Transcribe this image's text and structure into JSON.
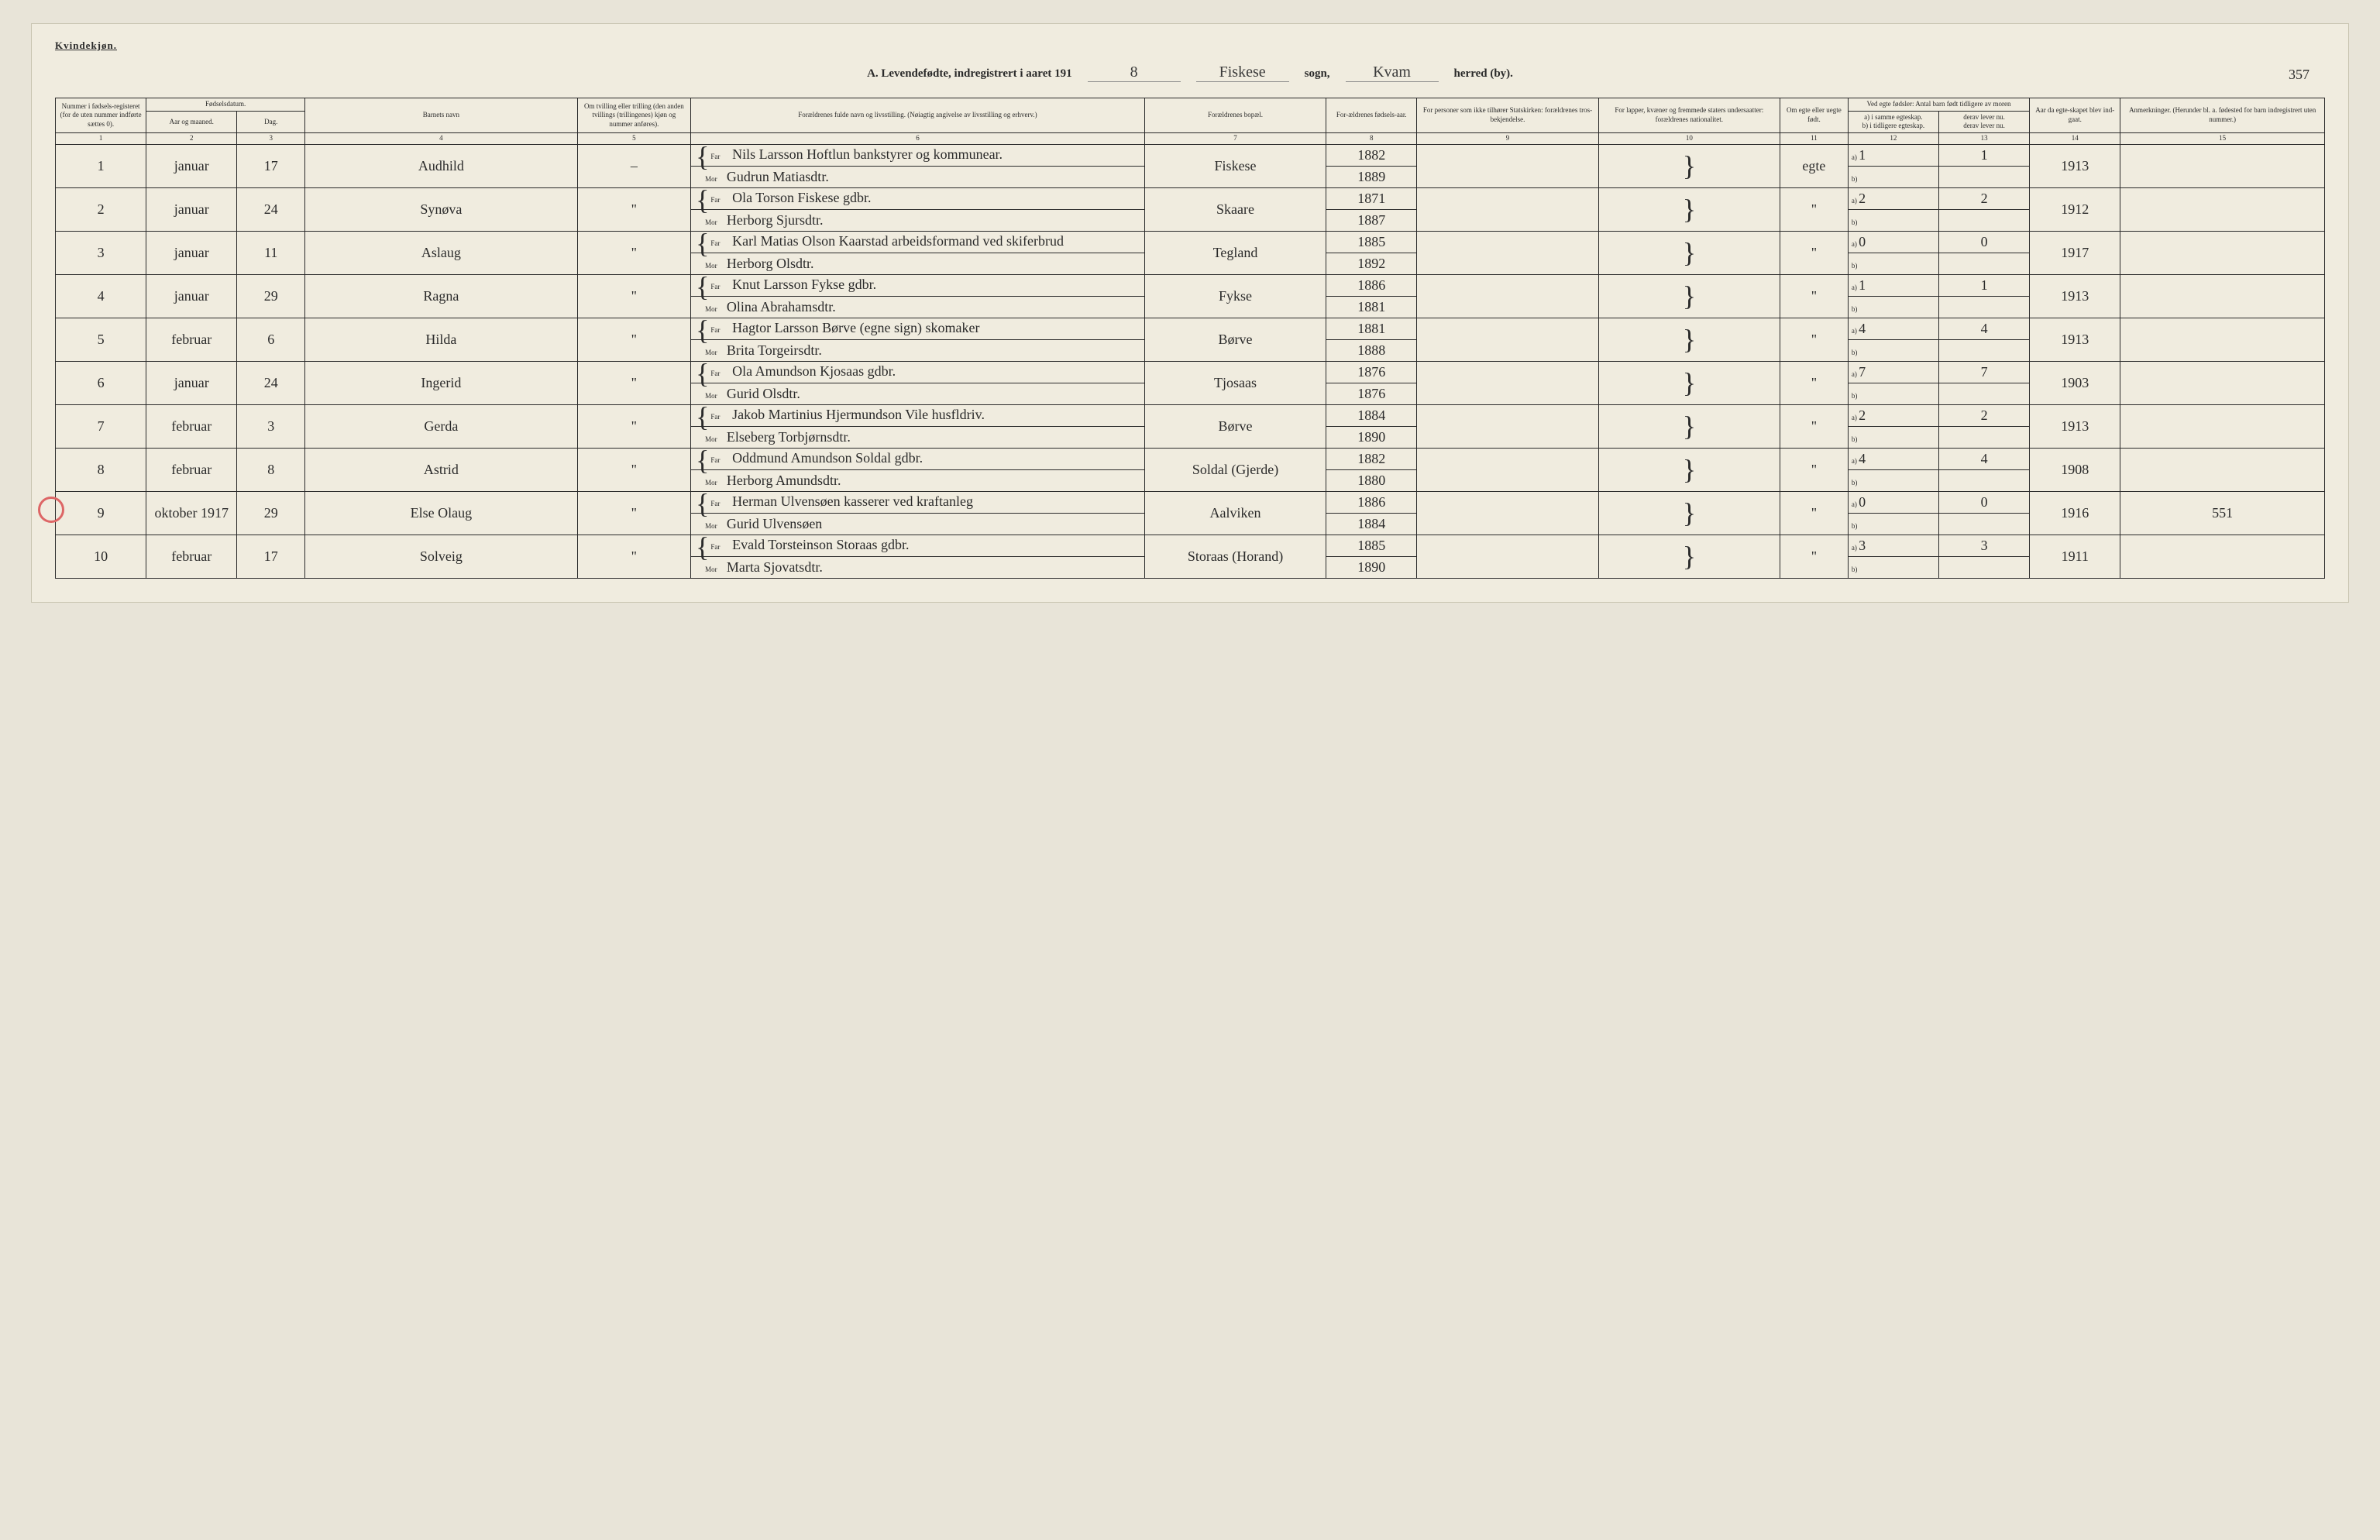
{
  "gender_label": "Kvindekjøn.",
  "title_prefix": "A. Levendefødte, indregistrert i aaret 191",
  "year_digit": "8",
  "sogn_label": "sogn,",
  "sogn_value": "Fiskese",
  "herred_label": "herred (by).",
  "herred_value": "Kvam",
  "page_number": "357",
  "headers": {
    "c1": "Nummer i fødsels-registeret (for de uten nummer indførte sættes 0).",
    "c2_3": "Fødselsdatum.",
    "c2": "Aar og maaned.",
    "c3": "Dag.",
    "c4": "Barnets navn",
    "c5": "Om tvilling eller trilling (den anden tvillings (trillingenes) kjøn og nummer anføres).",
    "c6": "Forældrenes fulde navn og livsstilling. (Nøiagtig angivelse av livsstilling og erhverv.)",
    "c7": "Forældrenes bopæl.",
    "c8": "For-ældrenes fødsels-aar.",
    "c9": "For personer som ikke tilhører Statskirken: forældrenes tros-bekjendelse.",
    "c10": "For lapper, kvæner og fremmede staters undersaatter: forældrenes nationalitet.",
    "c11": "Om egte eller uegte født.",
    "c12_13": "Ved egte fødsler: Antal barn født tidligere av moren",
    "c12a": "a) i samme egteskap.",
    "c12b": "b) i tidligere egteskap.",
    "c13a": "derav lever nu.",
    "c13b": "derav lever nu.",
    "c14": "Aar da egte-skapet blev ind-gaat.",
    "c15": "Anmerkninger. (Herunder bl. a. fødested for barn indregistrert uten nummer.)"
  },
  "col_nums": [
    "1",
    "2",
    "3",
    "4",
    "5",
    "6",
    "7",
    "8",
    "9",
    "10",
    "11",
    "12",
    "13",
    "14",
    "15"
  ],
  "far_label": "Far",
  "mor_label": "Mor",
  "rows": [
    {
      "num": "1",
      "month": "januar",
      "day": "17",
      "name": "Audhild",
      "twin": "–",
      "far": "Nils Larsson Hoftlun bankstyrer og kommunear.",
      "mor": "Gudrun Matiasdtr.",
      "bopael": "Fiskese",
      "far_aar": "1882",
      "mor_aar": "1889",
      "c9": "",
      "c10": "",
      "egte": "egte",
      "a": "1",
      "a_lever": "1",
      "b": "",
      "aar_egt": "1913",
      "anm": ""
    },
    {
      "num": "2",
      "month": "januar",
      "day": "24",
      "name": "Synøva",
      "twin": "\"",
      "far": "Ola Torson Fiskese gdbr.",
      "mor": "Herborg Sjursdtr.",
      "bopael": "Skaare",
      "far_aar": "1871",
      "mor_aar": "1887",
      "c9": "",
      "c10": "",
      "egte": "\"",
      "a": "2",
      "a_lever": "2",
      "b": "",
      "aar_egt": "1912",
      "anm": ""
    },
    {
      "num": "3",
      "month": "januar",
      "day": "11",
      "name": "Aslaug",
      "twin": "\"",
      "far": "Karl Matias Olson Kaarstad arbeidsformand ved skiferbrud",
      "mor": "Herborg Olsdtr.",
      "bopael": "Tegland",
      "far_aar": "1885",
      "mor_aar": "1892",
      "c9": "",
      "c10": "",
      "egte": "\"",
      "a": "0",
      "a_lever": "0",
      "b": "",
      "aar_egt": "1917",
      "anm": ""
    },
    {
      "num": "4",
      "month": "januar",
      "day": "29",
      "name": "Ragna",
      "twin": "\"",
      "far": "Knut Larsson Fykse gdbr.",
      "mor": "Olina Abrahamsdtr.",
      "bopael": "Fykse",
      "far_aar": "1886",
      "mor_aar": "1881",
      "c9": "",
      "c10": "",
      "egte": "\"",
      "a": "1",
      "a_lever": "1",
      "b": "",
      "aar_egt": "1913",
      "anm": ""
    },
    {
      "num": "5",
      "month": "februar",
      "day": "6",
      "name": "Hilda",
      "twin": "\"",
      "far": "Hagtor Larsson Børve (egne sign) skomaker",
      "mor": "Brita Torgeirsdtr.",
      "bopael": "Børve",
      "far_aar": "1881",
      "mor_aar": "1888",
      "c9": "",
      "c10": "",
      "egte": "\"",
      "a": "4",
      "a_lever": "4",
      "b": "",
      "aar_egt": "1913",
      "anm": ""
    },
    {
      "num": "6",
      "month": "januar",
      "day": "24",
      "name": "Ingerid",
      "twin": "\"",
      "far": "Ola Amundson Kjosaas gdbr.",
      "mor": "Gurid Olsdtr.",
      "bopael": "Tjosaas",
      "far_aar": "1876",
      "mor_aar": "1876",
      "c9": "",
      "c10": "",
      "egte": "\"",
      "a": "7",
      "a_lever": "7",
      "b": "",
      "aar_egt": "1903",
      "anm": ""
    },
    {
      "num": "7",
      "month": "februar",
      "day": "3",
      "name": "Gerda",
      "twin": "\"",
      "far": "Jakob Martinius Hjermundson Vile husfldriv.",
      "mor": "Elseberg Torbjørnsdtr.",
      "bopael": "Børve",
      "far_aar": "1884",
      "mor_aar": "1890",
      "c9": "",
      "c10": "",
      "egte": "\"",
      "a": "2",
      "a_lever": "2",
      "b": "",
      "aar_egt": "1913",
      "anm": ""
    },
    {
      "num": "8",
      "month": "februar",
      "day": "8",
      "name": "Astrid",
      "twin": "\"",
      "far": "Oddmund Amundson Soldal gdbr.",
      "mor": "Herborg Amundsdtr.",
      "bopael": "Soldal (Gjerde)",
      "far_aar": "1882",
      "mor_aar": "1880",
      "c9": "",
      "c10": "",
      "egte": "\"",
      "a": "4",
      "a_lever": "4",
      "b": "",
      "aar_egt": "1908",
      "anm": ""
    },
    {
      "num": "9",
      "month": "oktober 1917",
      "day": "29",
      "name": "Else Olaug",
      "twin": "\"",
      "far": "Herman Ulvensøen kasserer ved kraftanleg",
      "mor": "Gurid Ulvensøen",
      "bopael": "Aalviken",
      "far_aar": "1886",
      "mor_aar": "1884",
      "c9": "",
      "c10": "",
      "egte": "\"",
      "a": "0",
      "a_lever": "0",
      "b": "",
      "aar_egt": "1916",
      "anm": "551",
      "red_circle": true
    },
    {
      "num": "10",
      "month": "februar",
      "day": "17",
      "name": "Solveig",
      "twin": "\"",
      "far": "Evald Torsteinson Storaas gdbr.",
      "mor": "Marta Sjovatsdtr.",
      "bopael": "Storaas (Horand)",
      "far_aar": "1885",
      "mor_aar": "1890",
      "c9": "",
      "c10": "",
      "egte": "\"",
      "a": "3",
      "a_lever": "3",
      "b": "",
      "aar_egt": "1911",
      "anm": ""
    }
  ]
}
